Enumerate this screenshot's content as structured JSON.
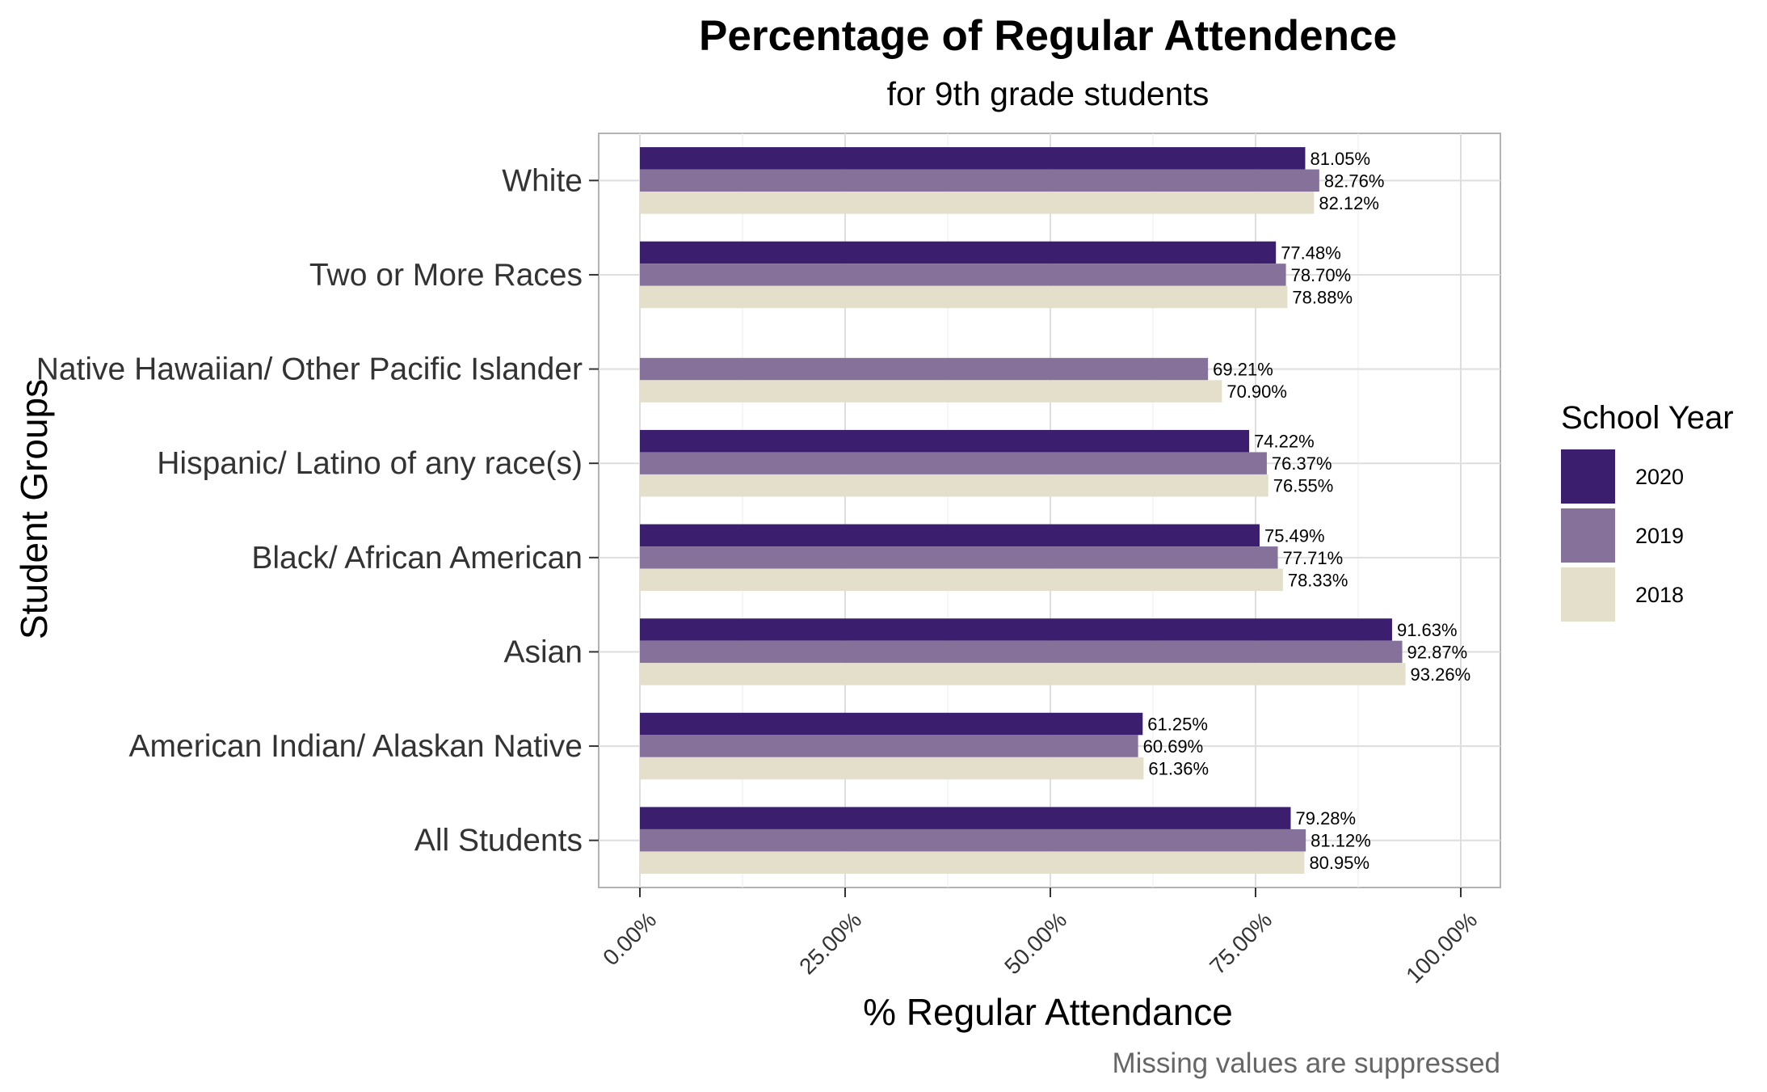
{
  "chart_data": {
    "type": "bar",
    "orientation": "horizontal",
    "title": "Percentage of Regular Attendence",
    "subtitle": "for 9th grade students",
    "xlabel": "% Regular Attendance",
    "ylabel": "Student Groups",
    "caption": "Missing values are suppressed",
    "xlim": [
      0,
      100
    ],
    "xticks": [
      0,
      25,
      50,
      75,
      100
    ],
    "xtick_labels": [
      "0.00%",
      "25.00%",
      "50.00%",
      "75.00%",
      "100.00%"
    ],
    "grid": true,
    "legend": {
      "title": "School Year",
      "position": "right"
    },
    "categories": [
      "All Students",
      "American Indian/ Alaskan Native",
      "Asian",
      "Black/ African American",
      "Hispanic/ Latino of any race(s)",
      "Native Hawaiian/ Other Pacific Islander",
      "Two or More Races",
      "White"
    ],
    "series": [
      {
        "name": "2020",
        "color": "#3b1f6e",
        "values": [
          79.28,
          61.25,
          91.63,
          75.49,
          74.22,
          null,
          77.48,
          81.05
        ]
      },
      {
        "name": "2019",
        "color": "#86719b",
        "values": [
          81.12,
          60.69,
          92.87,
          77.71,
          76.37,
          69.21,
          78.7,
          82.76
        ]
      },
      {
        "name": "2018",
        "color": "#e3dfcb",
        "values": [
          80.95,
          61.36,
          93.26,
          78.33,
          76.55,
          70.9,
          78.88,
          82.12
        ]
      }
    ]
  }
}
